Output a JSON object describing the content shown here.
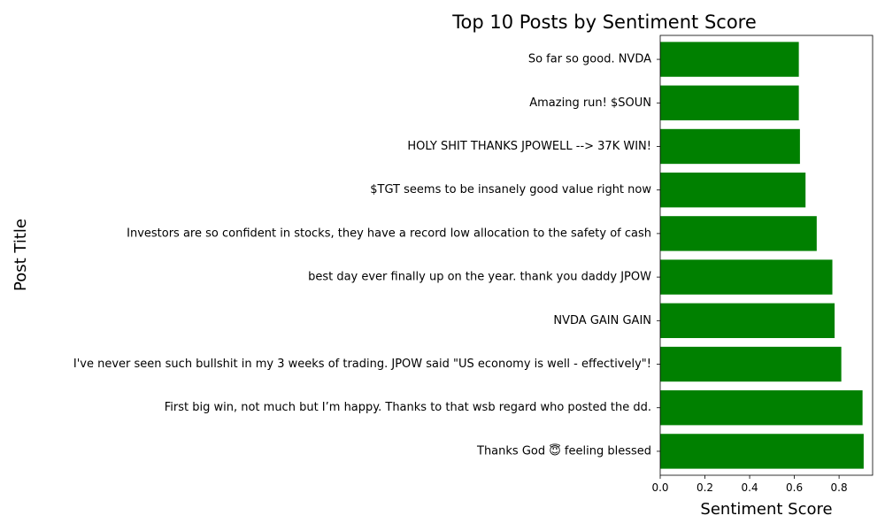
{
  "chart_data": {
    "type": "bar",
    "orientation": "horizontal",
    "title": "Top 10 Posts by Sentiment Score",
    "xlabel": "Sentiment Score",
    "ylabel": "Post Title",
    "xlim": [
      0,
      0.95
    ],
    "x_ticks": [
      "0.0",
      "0.2",
      "0.4",
      "0.6",
      "0.8"
    ],
    "grid": false,
    "bar_color": "#008000",
    "categories": [
      "Thanks God 😇 feeling blessed",
      "First big win, not much but I’m happy. Thanks to that wsb regard who posted the dd. ",
      "I've never seen such bullshit in my 3 weeks of trading. JPOW said \"US economy is well - effectively\"!",
      "NVDA GAIN GAIN",
      "best day ever finally up on the year. thank you daddy JPOW",
      "Investors are so confident in stocks, they have a record low allocation to the safety of cash",
      "$TGT seems to be insanely good value right now",
      "HOLY SHIT THANKS JPOWELL --> 37K WIN!",
      "Amazing run! $SOUN",
      "So far so good. NVDA "
    ],
    "values": [
      0.91,
      0.905,
      0.81,
      0.78,
      0.77,
      0.7,
      0.65,
      0.625,
      0.62,
      0.62
    ]
  }
}
